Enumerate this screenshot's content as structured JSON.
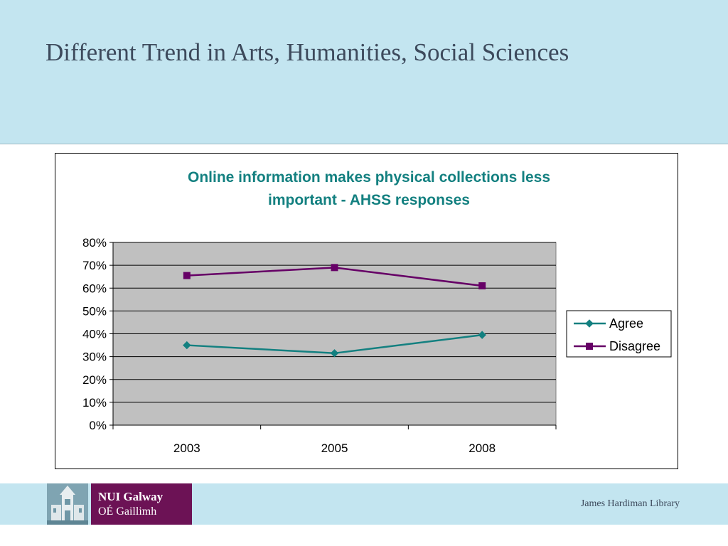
{
  "slide": {
    "title": "Different Trend in Arts, Humanities, Social Sciences"
  },
  "footer": {
    "logo_line1": "NUI Galway",
    "logo_line2": "OÉ Gaillimh",
    "library": "James Hardiman Library"
  },
  "colors": {
    "header_band": "#c3e5f0",
    "chart_title": "#138080",
    "plot_background": "#c0c0c0",
    "agree": "#138080",
    "disagree": "#660066",
    "logo_purple": "#6c1255"
  },
  "chart_data": {
    "type": "line",
    "title": "Online information makes physical collections less important - AHSS responses",
    "title_lines": [
      "Online information makes physical collections less",
      "important - AHSS responses"
    ],
    "categories": [
      "2003",
      "2005",
      "2008"
    ],
    "series": [
      {
        "name": "Agree",
        "values": [
          35,
          31.5,
          39.5
        ],
        "color": "#138080",
        "marker": "diamond"
      },
      {
        "name": "Disagree",
        "values": [
          65.5,
          69,
          61
        ],
        "color": "#660066",
        "marker": "square"
      }
    ],
    "xlabel": "",
    "ylabel": "",
    "ylim": [
      0,
      80
    ],
    "yticks": [
      0,
      10,
      20,
      30,
      40,
      50,
      60,
      70,
      80
    ],
    "ytick_labels": [
      "0%",
      "10%",
      "20%",
      "30%",
      "40%",
      "50%",
      "60%",
      "70%",
      "80%"
    ],
    "grid": true,
    "legend": "right"
  }
}
